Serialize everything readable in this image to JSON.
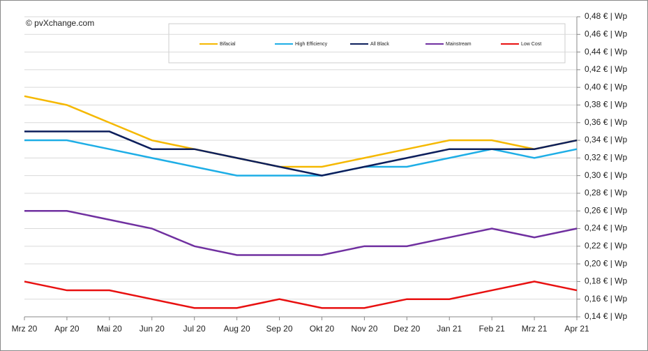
{
  "chart_data": {
    "type": "line",
    "annotation": "© pvXchange.com",
    "categories": [
      "Mrz 20",
      "Apr 20",
      "Mai 20",
      "Jun 20",
      "Jul 20",
      "Aug 20",
      "Sep 20",
      "Okt 20",
      "Nov 20",
      "Dez 20",
      "Jan 21",
      "Feb 21",
      "Mrz 21",
      "Apr 21"
    ],
    "series": [
      {
        "name": "Bifacial",
        "color": "#f5b800",
        "values": [
          0.39,
          0.38,
          0.36,
          0.34,
          0.33,
          0.32,
          0.31,
          0.31,
          0.32,
          0.33,
          0.34,
          0.34,
          0.33,
          0.34
        ]
      },
      {
        "name": "High Efficiency",
        "color": "#1eaee6",
        "values": [
          0.34,
          0.34,
          0.33,
          0.32,
          0.31,
          0.3,
          0.3,
          0.3,
          0.31,
          0.31,
          0.32,
          0.33,
          0.32,
          0.33
        ]
      },
      {
        "name": "All Black",
        "color": "#0d1f5c",
        "values": [
          0.35,
          0.35,
          0.35,
          0.33,
          0.33,
          0.32,
          0.31,
          0.3,
          0.31,
          0.32,
          0.33,
          0.33,
          0.33,
          0.34
        ]
      },
      {
        "name": "Mainstream",
        "color": "#7030a0",
        "values": [
          0.26,
          0.26,
          0.25,
          0.24,
          0.22,
          0.21,
          0.21,
          0.21,
          0.22,
          0.22,
          0.23,
          0.24,
          0.23,
          0.24
        ]
      },
      {
        "name": "Low Cost",
        "color": "#e81010",
        "values": [
          0.18,
          0.17,
          0.17,
          0.16,
          0.15,
          0.15,
          0.16,
          0.15,
          0.15,
          0.16,
          0.16,
          0.17,
          0.18,
          0.17
        ]
      }
    ],
    "ylim": [
      0.14,
      0.48
    ],
    "yticks": [
      {
        "value": 0.14,
        "label": "0,14 € | Wp"
      },
      {
        "value": 0.16,
        "label": "0,16 € | Wp"
      },
      {
        "value": 0.18,
        "label": "0,18 € | Wp"
      },
      {
        "value": 0.2,
        "label": "0,20 € | Wp"
      },
      {
        "value": 0.22,
        "label": "0,22 € | Wp"
      },
      {
        "value": 0.24,
        "label": "0,24 € | Wp"
      },
      {
        "value": 0.26,
        "label": "0,26 € | Wp"
      },
      {
        "value": 0.28,
        "label": "0,28 € | Wp"
      },
      {
        "value": 0.3,
        "label": "0,30 € | Wp"
      },
      {
        "value": 0.32,
        "label": "0,32 € | Wp"
      },
      {
        "value": 0.34,
        "label": "0,34 € | Wp"
      },
      {
        "value": 0.36,
        "label": "0,36 € | Wp"
      },
      {
        "value": 0.38,
        "label": "0,38 € | Wp"
      },
      {
        "value": 0.4,
        "label": "0,40 € | Wp"
      },
      {
        "value": 0.42,
        "label": "0,42 € | Wp"
      },
      {
        "value": 0.44,
        "label": "0,44 € | Wp"
      },
      {
        "value": 0.46,
        "label": "0,46 € | Wp"
      },
      {
        "value": 0.48,
        "label": "0,48 € | Wp"
      }
    ],
    "grid": true,
    "legend": "top"
  }
}
